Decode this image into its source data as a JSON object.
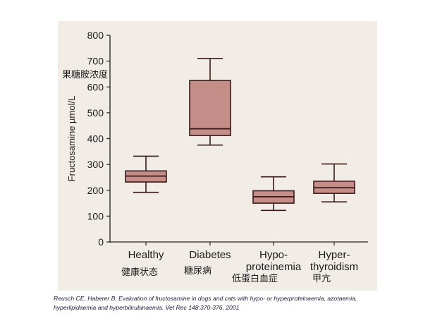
{
  "chart_data": {
    "type": "box",
    "ylabel": "Fructosamine µmol/L",
    "ylim": [
      0,
      800
    ],
    "yticks": [
      0,
      100,
      200,
      300,
      400,
      500,
      600,
      700,
      800
    ],
    "categories": [
      [
        "Healthy"
      ],
      [
        "Diabetes"
      ],
      [
        "Hypo-",
        "proteinemia"
      ],
      [
        "Hyper-",
        "thyroidism"
      ]
    ],
    "boxes": [
      {
        "whisker_low": 192,
        "q1": 232,
        "median": 255,
        "q3": 275,
        "whisker_high": 332
      },
      {
        "whisker_low": 375,
        "q1": 412,
        "median": 438,
        "q3": 625,
        "whisker_high": 710
      },
      {
        "whisker_low": 122,
        "q1": 150,
        "median": 175,
        "q3": 198,
        "whisker_high": 252
      },
      {
        "whisker_low": 155,
        "q1": 188,
        "median": 210,
        "q3": 235,
        "whisker_high": 302
      }
    ],
    "box_color": "#c48d88",
    "edge_color": "#3a1a18",
    "grid": false
  },
  "annotations": {
    "ylabel_cn": "果糖胺浓度",
    "categories_cn": [
      "健康状态",
      "糖尿病",
      "低蛋白血症",
      "甲亢"
    ]
  },
  "citation": {
    "line1": "Reusch CE, Haberer B: Evaluation of fructosamine in dogs and cats with hypo- or hyperproteinaemia, azotaemia,",
    "line2": "hyperlipidaemia and hyperbilirubinaemia. Vet Rec 148:370-376, 2001"
  }
}
